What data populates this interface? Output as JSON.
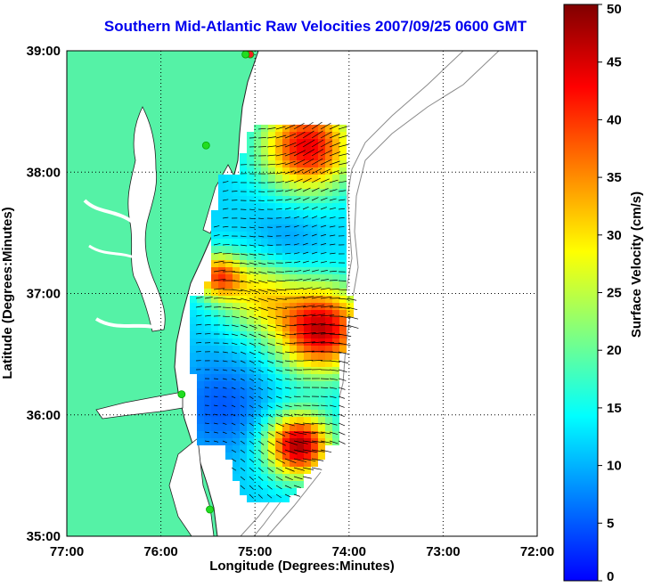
{
  "title": "Southern Mid-Atlantic Raw Velocities 2007/09/25 0600 GMT",
  "map": {
    "xlabel": "Longitude (Degrees:Minutes)",
    "ylabel": "Latitude (Degrees:Minutes)",
    "lon_range": [
      -77,
      -72
    ],
    "lat_range": [
      35,
      39
    ],
    "lon_ticks": [
      {
        "value": -77,
        "label": "77:00"
      },
      {
        "value": -76,
        "label": "76:00"
      },
      {
        "value": -75,
        "label": "75:00"
      },
      {
        "value": -74,
        "label": "74:00"
      },
      {
        "value": -73,
        "label": "73:00"
      },
      {
        "value": -72,
        "label": "72:00"
      }
    ],
    "lat_ticks": [
      {
        "value": 35,
        "label": "35:00"
      },
      {
        "value": 36,
        "label": "36:00"
      },
      {
        "value": 37,
        "label": "37:00"
      },
      {
        "value": 38,
        "label": "38:00"
      },
      {
        "value": 39,
        "label": "39:00"
      }
    ],
    "colors": {
      "land": "#55f2a6",
      "water": "#ffffff",
      "contour": "#8a8a8a",
      "grid": "#000000",
      "station": "#22dd22",
      "station_alt": "#ee2222",
      "arrow": "#000000"
    }
  },
  "colorbar": {
    "label": "Surface Velocity (cm/s)",
    "min": 0,
    "max": 50,
    "ticks": [
      {
        "value": 0,
        "label": "0"
      },
      {
        "value": 5,
        "label": "5"
      },
      {
        "value": 10,
        "label": "10"
      },
      {
        "value": 15,
        "label": "15"
      },
      {
        "value": 20,
        "label": "20"
      },
      {
        "value": 25,
        "label": "25"
      },
      {
        "value": 30,
        "label": "30"
      },
      {
        "value": 35,
        "label": "35"
      },
      {
        "value": 40,
        "label": "40"
      },
      {
        "value": 45,
        "label": "45"
      },
      {
        "value": 50,
        "label": "50"
      }
    ],
    "colormap": [
      "#0000ff",
      "#0080ff",
      "#00ffff",
      "#80ff80",
      "#ffff00",
      "#ff8000",
      "#ff0000",
      "#800000"
    ]
  },
  "stations": [
    {
      "lon": -75.05,
      "lat": 38.97,
      "color": "station_alt"
    },
    {
      "lon": -75.1,
      "lat": 38.97,
      "color": "station"
    },
    {
      "lon": -75.52,
      "lat": 38.22,
      "color": "station"
    },
    {
      "lon": -75.78,
      "lat": 36.17,
      "color": "station"
    },
    {
      "lon": -75.48,
      "lat": 35.22,
      "color": "station"
    }
  ]
}
